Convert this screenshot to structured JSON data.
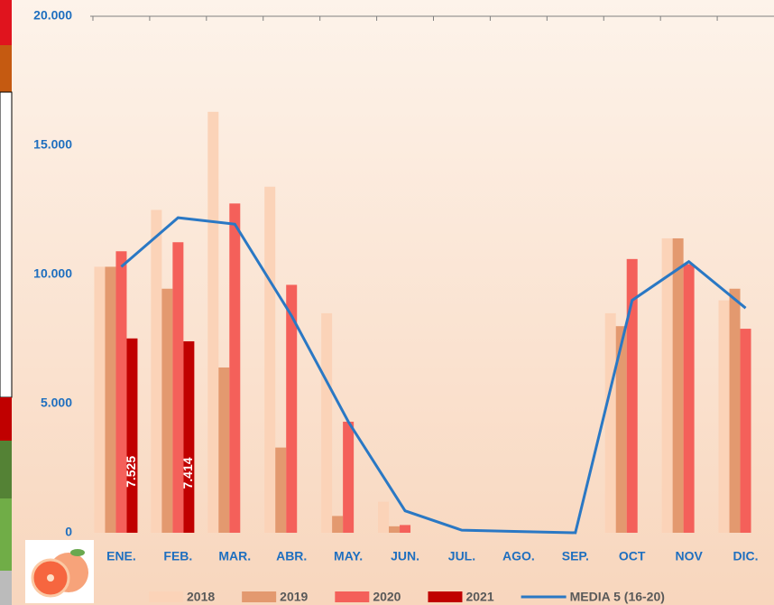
{
  "chart_data": {
    "type": "bar",
    "categories": [
      "ENE.",
      "FEB.",
      "MAR.",
      "ABR.",
      "MAY.",
      "JUN.",
      "JUL.",
      "AGO.",
      "SEP.",
      "OCT",
      "NOV",
      "DIC."
    ],
    "series": [
      {
        "name": "2018",
        "color": "#fbd3b8",
        "values": [
          10300,
          12500,
          16300,
          13400,
          8500,
          1200,
          0,
          0,
          0,
          8500,
          11400,
          9000
        ]
      },
      {
        "name": "2019",
        "color": "#e3996f",
        "values": [
          10300,
          9450,
          6400,
          3300,
          650,
          250,
          0,
          0,
          0,
          8000,
          11400,
          9450
        ]
      },
      {
        "name": "2020",
        "color": "#f4605a",
        "values": [
          10900,
          11250,
          12750,
          9600,
          4300,
          300,
          0,
          0,
          0,
          10600,
          10400,
          7900
        ]
      },
      {
        "name": "2021",
        "color": "#c00000",
        "values": [
          7525,
          7414,
          null,
          null,
          null,
          null,
          null,
          null,
          null,
          null,
          null,
          null
        ],
        "value_labels": [
          "7.525",
          "7.414",
          null,
          null,
          null,
          null,
          null,
          null,
          null,
          null,
          null,
          null
        ]
      },
      {
        "name": "MEDIA 5 (16-20)",
        "color": "#2a78c4",
        "type": "line",
        "values": [
          10300,
          12200,
          11950,
          8400,
          4300,
          850,
          100,
          50,
          0,
          9000,
          10500,
          8700
        ]
      }
    ],
    "ylim": [
      0,
      20000
    ],
    "yticks": [
      {
        "value": 0,
        "label": "0"
      },
      {
        "value": 5000,
        "label": "5.000"
      },
      {
        "value": 10000,
        "label": "10.000"
      },
      {
        "value": 15000,
        "label": "15.000"
      },
      {
        "value": 20000,
        "label": "20.000"
      }
    ],
    "grid": false
  }
}
